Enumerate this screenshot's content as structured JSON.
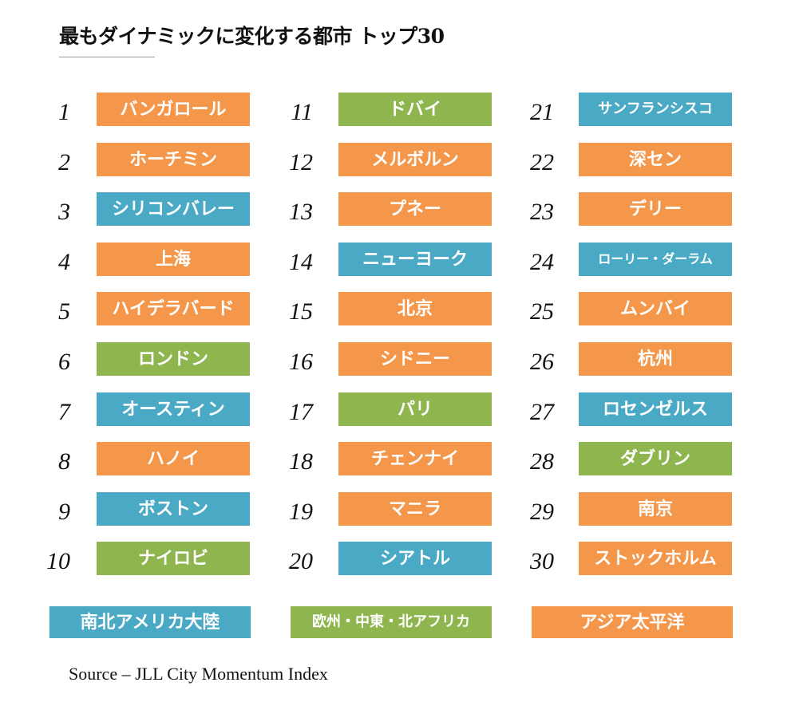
{
  "title": "最もダイナミックに変化する都市 トップ30",
  "source": "Source – JLL City Momentum Index",
  "colors": {
    "americas": "#4aa9c5",
    "emea": "#8fb54f",
    "apac": "#f4974a"
  },
  "legend": [
    {
      "label": "南北アメリカ大陸",
      "region": "americas"
    },
    {
      "label": "欧州・中東・北アフリカ",
      "region": "emea"
    },
    {
      "label": "アジア太平洋",
      "region": "apac"
    }
  ],
  "chart_data": {
    "type": "table",
    "title": "最もダイナミックに変化する都市 トップ30",
    "columns": [
      "rank",
      "city",
      "region"
    ],
    "rows": [
      {
        "rank": 1,
        "city": "バンガロール",
        "region": "apac"
      },
      {
        "rank": 2,
        "city": "ホーチミン",
        "region": "apac"
      },
      {
        "rank": 3,
        "city": "シリコンバレー",
        "region": "americas"
      },
      {
        "rank": 4,
        "city": "上海",
        "region": "apac"
      },
      {
        "rank": 5,
        "city": "ハイデラバード",
        "region": "apac"
      },
      {
        "rank": 6,
        "city": "ロンドン",
        "region": "emea"
      },
      {
        "rank": 7,
        "city": "オースティン",
        "region": "americas"
      },
      {
        "rank": 8,
        "city": "ハノイ",
        "region": "apac"
      },
      {
        "rank": 9,
        "city": "ボストン",
        "region": "americas"
      },
      {
        "rank": 10,
        "city": "ナイロビ",
        "region": "emea"
      },
      {
        "rank": 11,
        "city": "ドバイ",
        "region": "emea"
      },
      {
        "rank": 12,
        "city": "メルボルン",
        "region": "apac"
      },
      {
        "rank": 13,
        "city": "プネー",
        "region": "apac"
      },
      {
        "rank": 14,
        "city": "ニューヨーク",
        "region": "americas"
      },
      {
        "rank": 15,
        "city": "北京",
        "region": "apac"
      },
      {
        "rank": 16,
        "city": "シドニー",
        "region": "apac"
      },
      {
        "rank": 17,
        "city": "パリ",
        "region": "emea"
      },
      {
        "rank": 18,
        "city": "チェンナイ",
        "region": "apac"
      },
      {
        "rank": 19,
        "city": "マニラ",
        "region": "apac"
      },
      {
        "rank": 20,
        "city": "シアトル",
        "region": "americas"
      },
      {
        "rank": 21,
        "city": "サンフランシスコ",
        "region": "americas"
      },
      {
        "rank": 22,
        "city": "深セン",
        "region": "apac"
      },
      {
        "rank": 23,
        "city": "デリー",
        "region": "apac"
      },
      {
        "rank": 24,
        "city": "ローリー・ダーラム",
        "region": "americas"
      },
      {
        "rank": 25,
        "city": "ムンバイ",
        "region": "apac"
      },
      {
        "rank": 26,
        "city": "杭州",
        "region": "apac"
      },
      {
        "rank": 27,
        "city": "ロセンゼルス",
        "region": "americas"
      },
      {
        "rank": 28,
        "city": "ダブリン",
        "region": "emea"
      },
      {
        "rank": 29,
        "city": "南京",
        "region": "apac"
      },
      {
        "rank": 30,
        "city": "ストックホルム",
        "region": "apac"
      }
    ]
  }
}
